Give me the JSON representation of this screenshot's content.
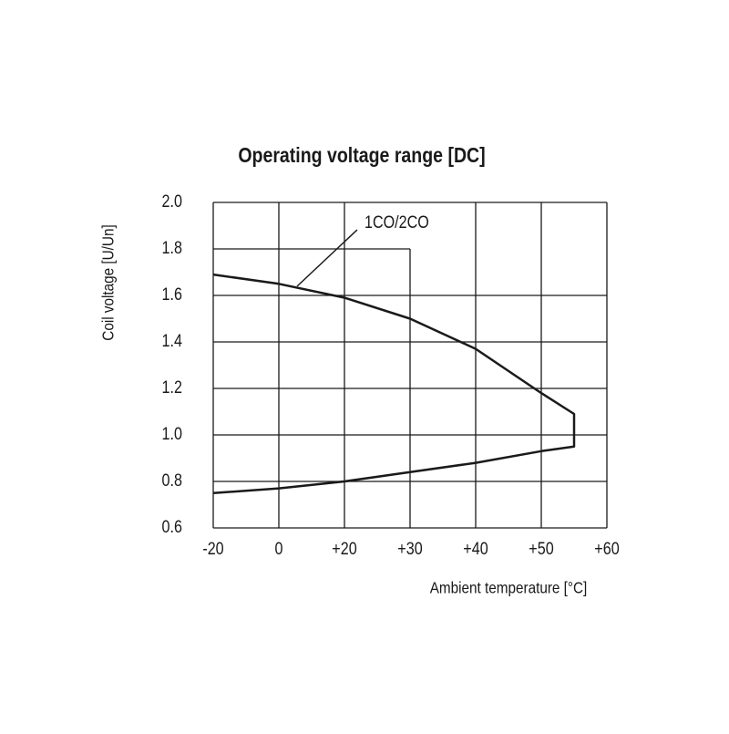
{
  "chart_data": {
    "type": "line",
    "title": "Operating voltage range [DC]",
    "xlabel": "Ambient temperature [°C]",
    "ylabel": "Coil voltage [U/Un]",
    "x": [
      -20,
      0,
      20,
      30,
      40,
      50,
      55,
      55,
      50,
      40,
      30,
      20,
      0,
      -20
    ],
    "series": [
      {
        "name": "1CO/2CO",
        "color": "#1a1a1a",
        "values": [
          1.69,
          1.65,
          1.59,
          1.5,
          1.37,
          1.18,
          1.09,
          0.95,
          0.93,
          0.88,
          0.84,
          0.8,
          0.77,
          0.75
        ]
      }
    ],
    "xlim": [
      -20,
      60
    ],
    "xticks": [
      -20,
      0,
      {
        "value": 20,
        "label": "+20"
      },
      {
        "value": 30,
        "label": "+30"
      },
      {
        "value": 40,
        "label": "+40"
      },
      {
        "value": 50,
        "label": "+50"
      },
      {
        "value": 60,
        "label": "+60"
      }
    ],
    "ylim": [
      0.6,
      2.0
    ],
    "yticks": [
      0.6,
      0.8,
      {
        "value": 1.0,
        "label": "1.0"
      },
      1.2,
      1.4,
      1.6,
      1.8,
      {
        "value": 2.0,
        "label": "2.0"
      }
    ],
    "grid": true
  }
}
